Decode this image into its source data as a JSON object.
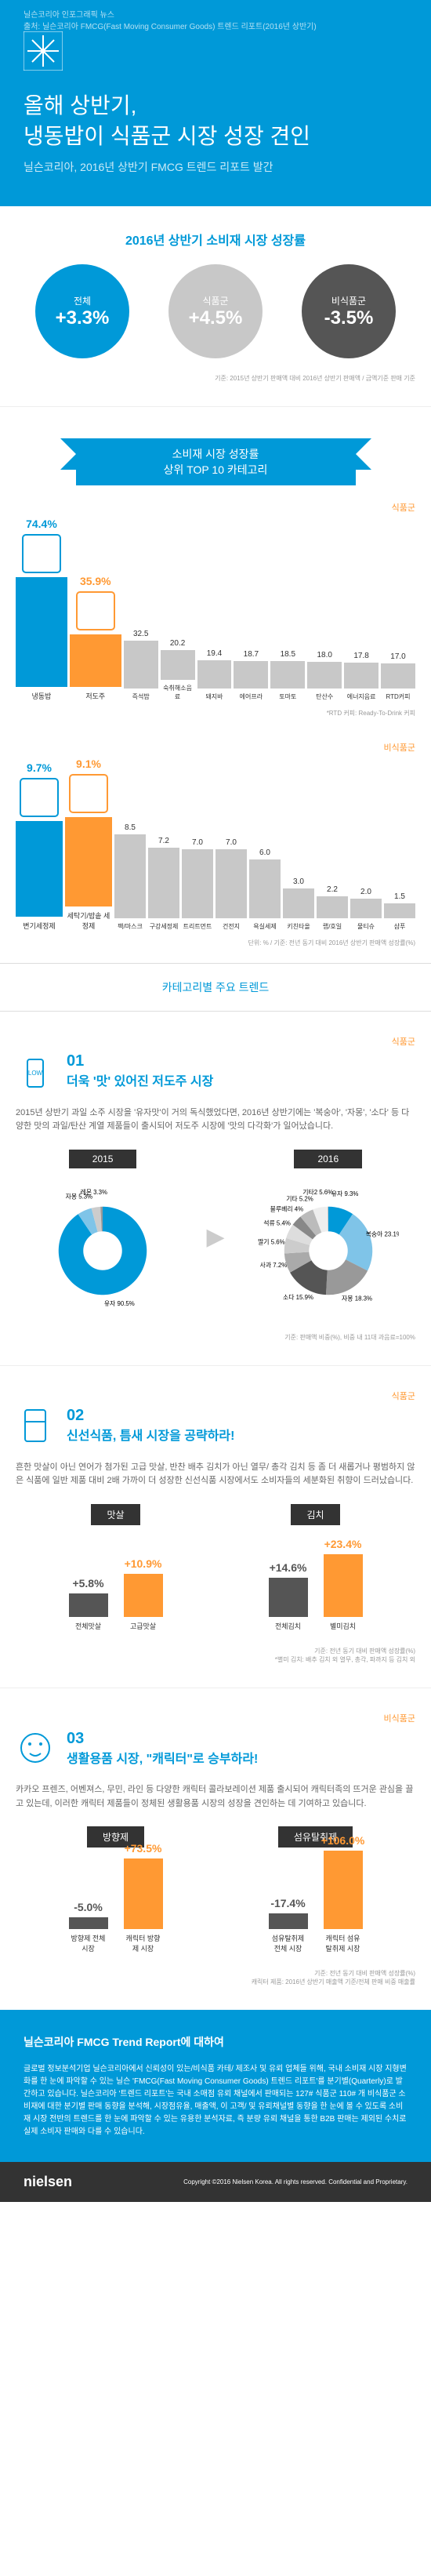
{
  "header": {
    "source": "닐슨코리아 인포그래픽 뉴스",
    "source_sub": "출처: 닐슨코리아 FMCG(Fast Moving Consumer Goods) 트렌드 리포트(2016년 상반기)",
    "title_line1": "올해 상반기,",
    "title_line2": "냉동밥이 식품군 시장 성장 견인",
    "subtitle": "닐슨코리아, 2016년 상반기 FMCG 트렌드 리포트 발간"
  },
  "growth": {
    "title": "2016년 상반기 소비재 시장 성장률",
    "circles": [
      {
        "label": "전체",
        "value": "+3.3%",
        "color": "#0099d8"
      },
      {
        "label": "식품군",
        "value": "+4.5%",
        "color": "#c8c8c8"
      },
      {
        "label": "비식품군",
        "value": "-3.5%",
        "color": "#555555"
      }
    ],
    "note": "기준: 2015년 상반기 판매액 대비 2016년 상반기 판매액 / 금액기준 판매 기준"
  },
  "top10": {
    "ribbon": "소비재 시장 성장률\n상위 TOP 10 카테고리",
    "food_label": "식품군",
    "nonfood_label": "비식품군",
    "food": {
      "highlight": [
        {
          "value": "74.4%",
          "label": "냉동밥",
          "color": "#0099d8"
        },
        {
          "value": "35.9%",
          "label": "저도주",
          "color": "#ff9933"
        }
      ],
      "bars": [
        {
          "value": "32.5",
          "label": "즉석밥",
          "color": "#c8c8c8"
        },
        {
          "value": "20.2",
          "label": "숙취해소음료",
          "color": "#c8c8c8"
        },
        {
          "value": "19.4",
          "label": "돼지바",
          "color": "#c8c8c8"
        },
        {
          "value": "18.7",
          "label": "에어프라",
          "color": "#c8c8c8"
        },
        {
          "value": "18.5",
          "label": "토마토",
          "color": "#c8c8c8"
        },
        {
          "value": "18.0",
          "label": "탄산수",
          "color": "#c8c8c8"
        },
        {
          "value": "17.8",
          "label": "에너지음료",
          "color": "#c8c8c8"
        },
        {
          "value": "17.0",
          "label": "RTD커피",
          "color": "#c8c8c8"
        }
      ],
      "note": "*RTD 커피: Ready-To-Drink 커피"
    },
    "nonfood": {
      "highlight": [
        {
          "value": "9.7%",
          "label": "변기세정제",
          "color": "#0099d8"
        },
        {
          "value": "9.1%",
          "label": "세탁기/밥솥 세정제",
          "color": "#ff9933"
        }
      ],
      "bars": [
        {
          "value": "8.5",
          "label": "팩/마스크",
          "color": "#c8c8c8"
        },
        {
          "value": "7.2",
          "label": "구강세정제",
          "color": "#c8c8c8"
        },
        {
          "value": "7.0",
          "label": "트리트먼트",
          "color": "#c8c8c8"
        },
        {
          "value": "7.0",
          "label": "건전지",
          "color": "#c8c8c8"
        },
        {
          "value": "6.0",
          "label": "욕실세제",
          "color": "#c8c8c8"
        },
        {
          "value": "3.0",
          "label": "키친타올",
          "color": "#c8c8c8"
        },
        {
          "value": "2.2",
          "label": "랩/호일",
          "color": "#c8c8c8"
        },
        {
          "value": "2.0",
          "label": "물티슈",
          "color": "#c8c8c8"
        },
        {
          "value": "1.5",
          "label": "샴푸",
          "color": "#c8c8c8"
        }
      ],
      "note2": "단위: % / 기준: 전년 동기 대비 2016년 상반기 판매액 성장률(%)"
    }
  },
  "category_title": "카테고리별 주요 트렌드",
  "trend1": {
    "num": "01",
    "title": "더욱 '맛' 있어진 저도주 시장",
    "desc": "2015년 상반기 과일 소주 시장을 '유자맛'이 거의 독식했었다면, 2016년 상반기에는 '복숭아', '자몽', '소다' 등 다양한 맛의 과일/탄산 계열 제품들이 출시되어 저도주 시장에 '맛의 다각화'가 일어났습니다.",
    "y2015": "2015",
    "y2016": "2016",
    "donut2015": [
      {
        "label": "유자",
        "value": 90.5,
        "color": "#0099d8"
      },
      {
        "label": "자몽",
        "value": 5.3,
        "color": "#7fc4e8"
      },
      {
        "label": "레몬",
        "value": 3.3,
        "color": "#cccccc"
      },
      {
        "label": "복숭아",
        "value": 0.8,
        "color": "#999999"
      }
    ],
    "donut2016": [
      {
        "label": "유자",
        "value": 9.3,
        "color": "#0099d8"
      },
      {
        "label": "복숭아",
        "value": 23.1,
        "color": "#7fc4e8"
      },
      {
        "label": "자몽",
        "value": 18.3,
        "color": "#999999"
      },
      {
        "label": "소다",
        "value": 15.9,
        "color": "#555555"
      },
      {
        "label": "사과",
        "value": 7.2,
        "color": "#aaaaaa"
      },
      {
        "label": "딸기",
        "value": 5.6,
        "color": "#cccccc"
      },
      {
        "label": "석류",
        "value": 5.4,
        "color": "#dddddd"
      },
      {
        "label": "블루베리",
        "value": 4.0,
        "color": "#888888"
      },
      {
        "label": "기타",
        "value": 5.2,
        "color": "#bbbbbb"
      },
      {
        "label": "기타2",
        "value": 5.6,
        "color": "#eeeeee"
      },
      {
        "label": "레몬",
        "value": 0.1,
        "color": "#666666"
      }
    ],
    "note": "기준: 판매액 비중(%), 비중 내 11대 과음료=100%"
  },
  "trend2": {
    "num": "02",
    "title": "신선식품, 틈새 시장을 공략하라!",
    "desc": "흔한 맛살이 아닌 연어가 첨가된 고급 맛살, 반찬 배추 김치가 아닌 열무/ 총각 김치 등 좀 더 새롭거나 평범하지 않은 식품에 일반 제품 대비 2배 가까이 더 성장한 신선식품 시장에서도 소비자들의 세분화된 취향이 드러났습니다.",
    "left": {
      "title": "맛살",
      "bars": [
        {
          "value": "+5.8%",
          "label": "전체맛살",
          "color": "#555555",
          "height": 30
        },
        {
          "value": "+10.9%",
          "label": "고급맛살",
          "color": "#ff9933",
          "height": 55
        }
      ]
    },
    "right": {
      "title": "김치",
      "bars": [
        {
          "value": "+14.6%",
          "label": "전체김치",
          "color": "#555555",
          "height": 50
        },
        {
          "value": "+23.4%",
          "label": "별미김치",
          "color": "#ff9933",
          "height": 80
        }
      ]
    },
    "note": "기준: 전년 동기 대비 판매액 성장률(%)\n*별미 김치: 배추 김치 외 열무, 총각, 파까지 등 김치 외"
  },
  "trend3": {
    "num": "03",
    "title": "생활용품 시장, \"캐릭터\"로 승부하라!",
    "desc": "카카오 프렌즈, 어벤져스, 무민, 라인 등 다양한 캐릭터 콜라보레이션 제품 출시되어 캐릭터족의 뜨거운 관심을 끌고 있는데, 이러한 캐릭터 제품들이 정체된 생활용품 시장의 성장을 견인하는 데 기여하고 있습니다.",
    "left": {
      "title": "방향제",
      "bars": [
        {
          "value": "-5.0%",
          "label": "방향제 전체 시장",
          "color": "#555555",
          "height": 15,
          "negative": true
        },
        {
          "value": "+73.5%",
          "label": "캐릭터 방향제 시장",
          "color": "#ff9933",
          "height": 90
        }
      ]
    },
    "right": {
      "title": "섬유탈취제",
      "bars": [
        {
          "value": "-17.4%",
          "label": "섬유탈취제 전체 시장",
          "color": "#555555",
          "height": 20,
          "negative": true
        },
        {
          "value": "+106.0%",
          "label": "캐릭터 섬유탈취제 시장",
          "color": "#ff9933",
          "height": 100
        }
      ]
    },
    "note": "기준: 전년 동기 대비 판매액 성장률(%)\n캐릭터 제품: 2016년 상반기 매출액 기준/전체 판매 비중 매출률"
  },
  "about": {
    "title": "닐슨코리아 FMCG Trend Report에 대하여",
    "text": "글로벌 정보분석기업 닐슨코리아에서 신뢰성이 있는/비식품 카테/ 제조사 및 유뢰 업체들 위해, 국내 소비재 시장 지형변화를 한 눈에 파악할 수 있는 닐슨 'FMCG(Fast Moving Consumer Goods) 트렌드 리포트'를 분기별(Quarterly)로 발간하고 있습니다. 닐슨코리아 '트렌드 리포트'는 국내 소매점 유뢰 채널에서 판매되는 127# 식품군 110# 개 비식품군 소비재에 대한 분기별 판매 동향을 분석해, 시장점유율, 매출액, 이 고객/ 및 유뢰채널별 동향을 한 눈에 볼 수 있도록 소비재 시장 전반의 트렌드를 한 눈에 파악할 수 있는 유용한 분석자료, 즉 분량 유뢰 채널을 통한 B2B 판매는 제외된 수치로 실제 소비자 판매와 다를 수 있습니다."
  },
  "footer": {
    "logo": "nielsen",
    "copyright": "Copyright ©2016 Nielsen Korea. All rights reserved. Confidential and Proprietary."
  }
}
